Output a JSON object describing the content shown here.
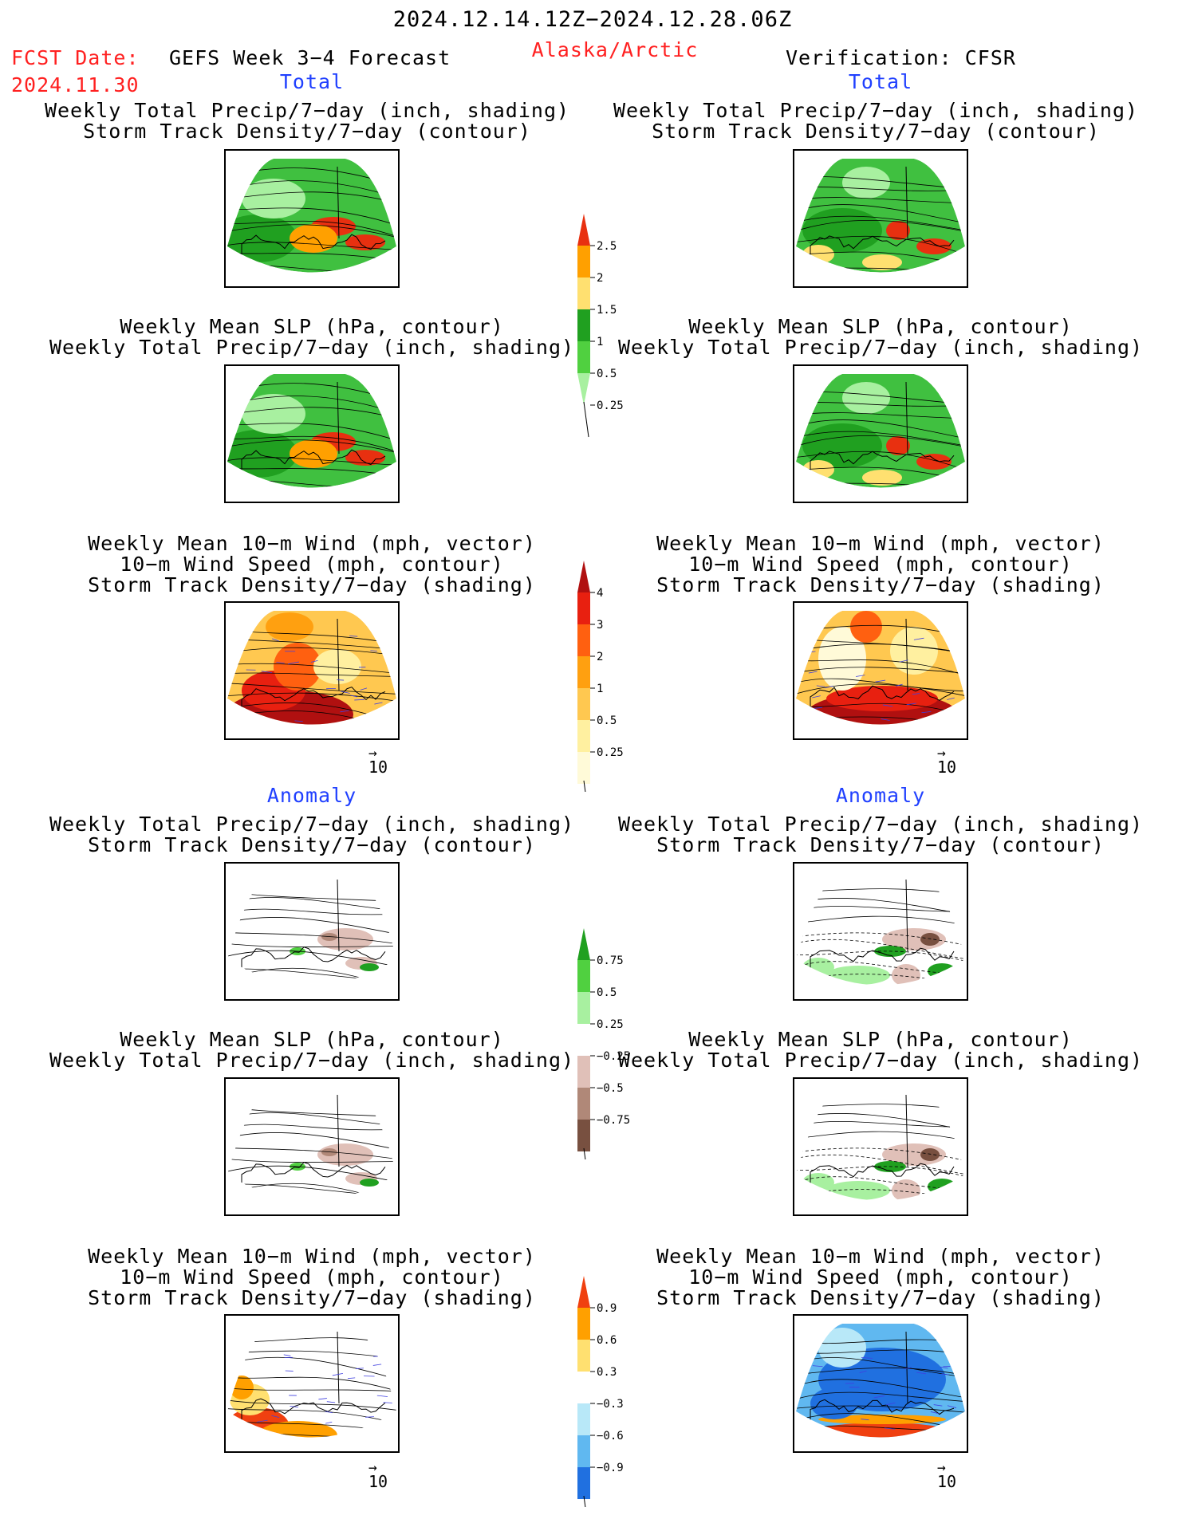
{
  "header": {
    "period": "2024.12.14.12Z−2024.12.28.06Z",
    "fcst_label": "FCST Date:",
    "fcst_date": "2024.11.30",
    "model": "GEFS Week 3−4 Forecast",
    "region": "Alaska/Arctic",
    "verification": "Verification: CFSR"
  },
  "sections": {
    "total": "Total",
    "anomaly": "Anomaly"
  },
  "titles": {
    "precip_track": [
      "Weekly Total Precip/7−day (inch, shading)",
      "Storm Track Density/7−day (contour)"
    ],
    "slp_precip": [
      "Weekly Mean SLP (hPa, contour)",
      "Weekly Total Precip/7−day (inch, shading)"
    ],
    "wind_track": [
      "Weekly Mean 10−m Wind (mph, vector)",
      "10−m Wind Speed (mph, contour)",
      "Storm Track Density/7−day (shading)"
    ]
  },
  "vector_ref": "10",
  "colorbars": {
    "precip_total": {
      "labels": [
        "2.5",
        "2",
        "1.5",
        "1",
        "0.5",
        "0.25"
      ],
      "colors": [
        "#e83010",
        "#ffa000",
        "#ffe070",
        "#20a020",
        "#50d040",
        "#a8f0a0"
      ]
    },
    "track_total": {
      "labels": [
        "4",
        "3",
        "2",
        "1",
        "0.5",
        "0.25"
      ],
      "colors": [
        "#b01010",
        "#e82010",
        "#ff6010",
        "#ffa010",
        "#ffc850",
        "#fff0a0",
        "#fffad8"
      ]
    },
    "precip_anom": {
      "labels": [
        "0.75",
        "0.5",
        "0.25",
        "−0.25",
        "−0.5",
        "−0.75"
      ],
      "colors": [
        "#20a020",
        "#50d040",
        "#a8f0a0",
        "#ffffff",
        "#e0c0b8",
        "#b08878",
        "#785040"
      ]
    },
    "track_anom": {
      "labels": [
        "0.9",
        "0.6",
        "0.3",
        "−0.3",
        "−0.6",
        "−0.9"
      ],
      "colors": [
        "#f04010",
        "#ffa000",
        "#ffe070",
        "#ffffff",
        "#b8e8f8",
        "#60b8f0",
        "#2070e0"
      ]
    }
  }
}
